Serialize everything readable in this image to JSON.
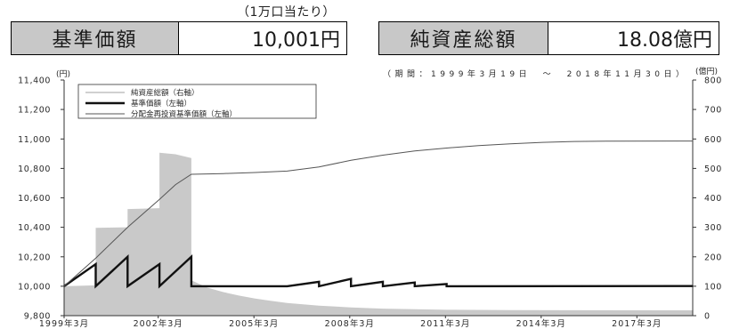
{
  "unit_note": "（1万口当たり）",
  "theme": {
    "label_background": "#c8c8c8",
    "border": "#000000"
  },
  "summary": {
    "nav": {
      "label": "基準価額",
      "value": "10,001円"
    },
    "net_assets": {
      "label": "純資産総額",
      "value": "18.08億円"
    }
  },
  "chart_data": {
    "type": "line",
    "period_note": "（期間：1999年3月19日　～　2018年11月30日）",
    "xlim": [
      "1999-03-19",
      "2018-11-30"
    ],
    "x_ticks": [
      "1999年3月",
      "2002年3月",
      "2005年3月",
      "2008年3月",
      "2011年3月",
      "2014年3月",
      "2017年3月"
    ],
    "left_axis": {
      "unit": "(円)",
      "ylim": [
        9800,
        11400
      ],
      "ticks": [
        "9,800",
        "10,000",
        "10,200",
        "10,400",
        "10,600",
        "10,800",
        "11,000",
        "11,200",
        "11,400"
      ]
    },
    "right_axis": {
      "unit": "(億円)",
      "ylim": [
        0,
        800
      ],
      "ticks": [
        "0",
        "100",
        "200",
        "300",
        "400",
        "500",
        "600",
        "700",
        "800"
      ]
    },
    "grid": false,
    "legend": {
      "position": "top-left"
    },
    "series": [
      {
        "name": "純資産総額（右軸）",
        "axis": "right",
        "kind": "area",
        "color": "#c9c9c9",
        "points": [
          [
            "1999-03-19",
            100
          ],
          [
            "2000-03",
            103
          ],
          [
            "2000-03",
            298
          ],
          [
            "2001-03",
            300
          ],
          [
            "2001-03",
            362
          ],
          [
            "2002-03",
            365
          ],
          [
            "2002-03",
            553
          ],
          [
            "2002-09",
            548
          ],
          [
            "2003-03",
            535
          ],
          [
            "2003-03",
            120
          ],
          [
            "2003-09",
            95
          ],
          [
            "2004-03",
            80
          ],
          [
            "2004-09",
            68
          ],
          [
            "2005-03",
            58
          ],
          [
            "2005-09",
            50
          ],
          [
            "2006-03",
            43
          ],
          [
            "2007-03",
            34
          ],
          [
            "2008-03",
            28
          ],
          [
            "2009-03",
            24
          ],
          [
            "2010-03",
            22
          ],
          [
            "2011-03",
            20
          ],
          [
            "2013-03",
            19
          ],
          [
            "2015-03",
            18.5
          ],
          [
            "2018-11-30",
            18.08
          ]
        ]
      },
      {
        "name": "基準価額（左軸）",
        "axis": "left",
        "kind": "line",
        "color": "#111111",
        "points": [
          [
            "1999-03-19",
            10000
          ],
          [
            "2000-03",
            10150
          ],
          [
            "2000-03",
            10000
          ],
          [
            "2001-03",
            10200
          ],
          [
            "2001-03",
            10000
          ],
          [
            "2002-03",
            10150
          ],
          [
            "2002-03",
            10000
          ],
          [
            "2003-03",
            10200
          ],
          [
            "2003-03",
            10000
          ],
          [
            "2006-03",
            10000
          ],
          [
            "2007-03",
            10030
          ],
          [
            "2007-03",
            10000
          ],
          [
            "2008-03",
            10050
          ],
          [
            "2008-03",
            10000
          ],
          [
            "2009-03",
            10030
          ],
          [
            "2009-03",
            10000
          ],
          [
            "2010-03",
            10025
          ],
          [
            "2010-03",
            10000
          ],
          [
            "2011-03",
            10015
          ],
          [
            "2011-03",
            10000
          ],
          [
            "2018-11-30",
            10001
          ]
        ]
      },
      {
        "name": "分配金再投資基準価額（左軸）",
        "axis": "left",
        "kind": "line",
        "color": "#555555",
        "points": [
          [
            "1999-03-19",
            10000
          ],
          [
            "2000-03",
            10190
          ],
          [
            "2001-03",
            10400
          ],
          [
            "2002-03",
            10590
          ],
          [
            "2002-09",
            10690
          ],
          [
            "2003-03",
            10760
          ],
          [
            "2004-03",
            10765
          ],
          [
            "2005-03",
            10772
          ],
          [
            "2006-03",
            10782
          ],
          [
            "2007-03",
            10810
          ],
          [
            "2008-03",
            10855
          ],
          [
            "2009-03",
            10890
          ],
          [
            "2010-03",
            10918
          ],
          [
            "2011-03",
            10938
          ],
          [
            "2012-03",
            10955
          ],
          [
            "2013-03",
            10967
          ],
          [
            "2014-03",
            10977
          ],
          [
            "2015-03",
            10983
          ],
          [
            "2016-03",
            10985
          ],
          [
            "2018-11-30",
            10986
          ]
        ]
      }
    ]
  }
}
